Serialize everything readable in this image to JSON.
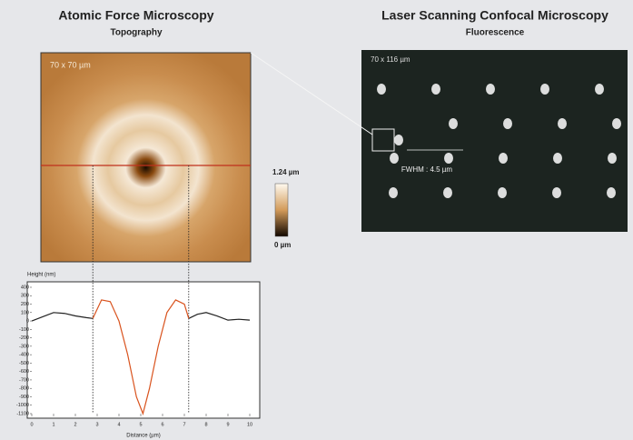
{
  "afm": {
    "title": "Atomic Force Microscopy",
    "subtitle": "Topography",
    "scale": "70 x 70 µm"
  },
  "lscm": {
    "title": "Laser Scanning Confocal Microscopy",
    "subtitle": "Fluorescence",
    "scale": "70 x 116 µm",
    "fwhm": "FWHM : 4.5 µm"
  },
  "colorbar": {
    "max_label": "1.24 µm",
    "min_label": "0 µm"
  },
  "chart_data": {
    "type": "line",
    "x_label": "Distance (µm)",
    "y_label": "Height (nm)",
    "x": [
      0,
      0.5,
      1,
      1.5,
      2,
      2.5,
      2.8,
      3.2,
      3.6,
      4,
      4.4,
      4.8,
      5.1,
      5.4,
      5.8,
      6.2,
      6.6,
      7,
      7.2,
      7.6,
      8,
      8.5,
      9,
      9.5,
      10
    ],
    "series": [
      {
        "color": "#222222",
        "values": [
          0,
          50,
          100,
          90,
          60,
          40,
          30,
          null,
          null,
          null,
          null,
          null,
          null,
          null,
          null,
          null,
          null,
          null,
          30,
          80,
          100,
          60,
          10,
          20,
          10
        ]
      },
      {
        "color": "#d9531e",
        "values": [
          null,
          null,
          null,
          null,
          null,
          null,
          30,
          250,
          230,
          0,
          -400,
          -900,
          -1100,
          -800,
          -300,
          100,
          250,
          200,
          30,
          null,
          null,
          null,
          null,
          null,
          null
        ]
      }
    ],
    "xlim": [
      0,
      10
    ],
    "xticks": [
      0,
      1,
      2,
      3,
      4,
      5,
      6,
      7,
      8,
      9,
      10
    ],
    "ylim": [
      -1100,
      400
    ],
    "yticks": [
      400,
      300,
      200,
      100,
      0,
      -100,
      -200,
      -300,
      -400,
      -500,
      -600,
      -700,
      -800,
      -900,
      -1000,
      -1100
    ]
  }
}
